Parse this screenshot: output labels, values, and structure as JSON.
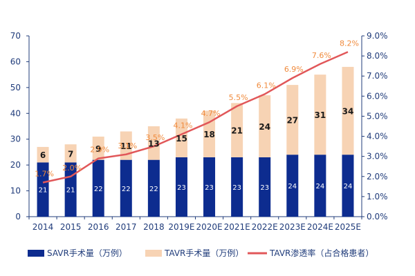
{
  "chart_data": {
    "type": "bar",
    "categories": [
      "2014",
      "2015",
      "2016",
      "2017",
      "2018",
      "2019E",
      "2020E",
      "2021E",
      "2022E",
      "2023E",
      "2024E",
      "2025E"
    ],
    "series": [
      {
        "name": "SAVR手术量（万例）",
        "kind": "stacked-bar",
        "values": [
          21,
          21,
          22,
          22,
          22,
          23,
          23,
          23,
          23,
          24,
          24,
          24
        ],
        "color": "#0d2c8f"
      },
      {
        "name": "TAVR手术量（万例）",
        "kind": "stacked-bar",
        "values": [
          6,
          7,
          9,
          11,
          13,
          15,
          18,
          21,
          24,
          27,
          31,
          34
        ],
        "color": "#f7d3b4"
      },
      {
        "name": "TAVR渗透率（占合格患者）",
        "kind": "line",
        "axis": "right",
        "values": [
          1.7,
          2.0,
          2.9,
          3.1,
          3.5,
          4.1,
          4.7,
          5.5,
          6.1,
          6.9,
          7.6,
          8.2
        ],
        "labels": [
          "1.7%",
          "2.0%",
          "2.9%",
          "3.1%",
          "3.5%",
          "4.1%",
          "4.7%",
          "5.5%",
          "6.1%",
          "6.9%",
          "7.6%",
          "8.2%"
        ],
        "color": "#e15759"
      }
    ],
    "yleft": {
      "ylim": [
        0,
        70
      ],
      "ticks": [
        0,
        10,
        20,
        30,
        40,
        50,
        60,
        70
      ]
    },
    "yright": {
      "ylim": [
        0,
        9
      ],
      "ticks": [
        "0.0%",
        "1.0%",
        "2.0%",
        "3.0%",
        "4.0%",
        "5.0%",
        "6.0%",
        "7.0%",
        "8.0%",
        "9.0%"
      ]
    },
    "colors": {
      "axis": "#1f3b7a",
      "rate_label": "#f08a3c"
    },
    "legend_position": "bottom"
  }
}
